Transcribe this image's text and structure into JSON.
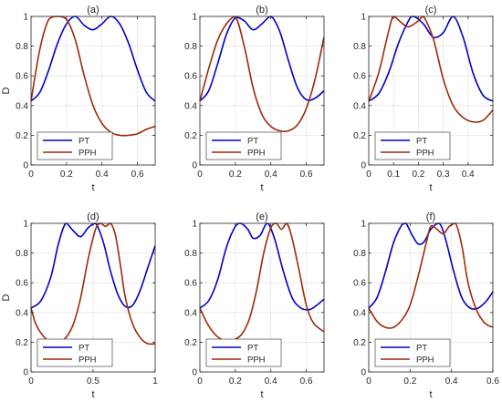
{
  "figure": {
    "legend_placement": "lower-left",
    "grid": true
  },
  "colors": {
    "PT": "#0000c8",
    "PPH": "#9e2a0a",
    "grid": "#e6e6e6",
    "axis": "#262626"
  },
  "chart_data": [
    {
      "type": "line",
      "panel": "(a)",
      "xlabel": "t",
      "ylabel": "D",
      "xlim": [
        0,
        0.7
      ],
      "ylim": [
        0,
        1
      ],
      "xticks": [
        0,
        0.2,
        0.4,
        0.6
      ],
      "xticklabels": [
        "0",
        "0.2",
        "0.4",
        "0.6"
      ],
      "yticks": [
        0,
        0.2,
        0.4,
        0.6,
        0.8,
        1
      ],
      "yticklabels": [
        "0",
        "0.2",
        "0.4",
        "0.6",
        "0.8",
        "1"
      ],
      "series": [
        {
          "name": "PT",
          "x": [
            0,
            0.05,
            0.1,
            0.15,
            0.2,
            0.25,
            0.3,
            0.35,
            0.4,
            0.45,
            0.5,
            0.55,
            0.6,
            0.65,
            0.7
          ],
          "y": [
            0.43,
            0.49,
            0.64,
            0.82,
            0.95,
            1.0,
            0.94,
            0.91,
            0.95,
            1.0,
            0.95,
            0.82,
            0.64,
            0.49,
            0.43
          ]
        },
        {
          "name": "PPH",
          "x": [
            0,
            0.05,
            0.1,
            0.15,
            0.2,
            0.25,
            0.3,
            0.35,
            0.4,
            0.45,
            0.5,
            0.55,
            0.6,
            0.65,
            0.7
          ],
          "y": [
            0.43,
            0.78,
            0.98,
            1.0,
            0.98,
            0.84,
            0.6,
            0.4,
            0.28,
            0.22,
            0.2,
            0.2,
            0.21,
            0.24,
            0.26
          ]
        }
      ]
    },
    {
      "type": "line",
      "panel": "(b)",
      "xlabel": "t",
      "ylabel": "",
      "xlim": [
        0,
        0.7
      ],
      "ylim": [
        0,
        1
      ],
      "xticks": [
        0,
        0.2,
        0.4,
        0.6
      ],
      "xticklabels": [
        "0",
        "0.2",
        "0.4",
        "0.6"
      ],
      "yticks": [
        0,
        0.2,
        0.4,
        0.6,
        0.8,
        1
      ],
      "yticklabels": [
        "0",
        "0.2",
        "0.4",
        "0.6",
        "0.8",
        "1"
      ],
      "series": [
        {
          "name": "PT",
          "x": [
            0,
            0.05,
            0.1,
            0.15,
            0.2,
            0.25,
            0.3,
            0.35,
            0.4,
            0.45,
            0.5,
            0.55,
            0.6,
            0.65,
            0.7
          ],
          "y": [
            0.43,
            0.5,
            0.68,
            0.88,
            0.99,
            0.97,
            0.91,
            0.95,
            1.0,
            0.9,
            0.7,
            0.52,
            0.44,
            0.45,
            0.5
          ]
        },
        {
          "name": "PPH",
          "x": [
            0,
            0.05,
            0.1,
            0.15,
            0.2,
            0.25,
            0.3,
            0.35,
            0.4,
            0.45,
            0.5,
            0.55,
            0.6,
            0.65,
            0.7
          ],
          "y": [
            0.43,
            0.65,
            0.84,
            0.95,
            1.0,
            0.8,
            0.52,
            0.34,
            0.26,
            0.23,
            0.23,
            0.27,
            0.38,
            0.58,
            0.86
          ]
        }
      ]
    },
    {
      "type": "line",
      "panel": "(c)",
      "xlabel": "t",
      "ylabel": "",
      "xlim": [
        0,
        0.5
      ],
      "ylim": [
        0,
        1
      ],
      "xticks": [
        0,
        0.1,
        0.2,
        0.3,
        0.4
      ],
      "xticklabels": [
        "0",
        "0.1",
        "0.2",
        "0.3",
        "0.4"
      ],
      "yticks": [
        0,
        0.2,
        0.4,
        0.6,
        0.8,
        1
      ],
      "yticklabels": [
        "0",
        "0.2",
        "0.4",
        "0.6",
        "0.8",
        "1"
      ],
      "series": [
        {
          "name": "PT",
          "x": [
            0,
            0.04,
            0.08,
            0.12,
            0.16,
            0.18,
            0.22,
            0.26,
            0.3,
            0.34,
            0.38,
            0.42,
            0.46,
            0.5
          ],
          "y": [
            0.43,
            0.48,
            0.62,
            0.82,
            0.97,
            1.0,
            0.95,
            0.86,
            0.89,
            1.0,
            0.86,
            0.62,
            0.47,
            0.43
          ]
        },
        {
          "name": "PPH",
          "x": [
            0,
            0.04,
            0.08,
            0.1,
            0.13,
            0.16,
            0.2,
            0.22,
            0.26,
            0.3,
            0.34,
            0.38,
            0.42,
            0.46,
            0.5
          ],
          "y": [
            0.43,
            0.62,
            0.9,
            1.0,
            0.96,
            0.93,
            0.97,
            1.0,
            0.85,
            0.58,
            0.4,
            0.32,
            0.29,
            0.3,
            0.37
          ]
        }
      ]
    },
    {
      "type": "line",
      "panel": "(d)",
      "xlabel": "t",
      "ylabel": "D",
      "xlim": [
        0,
        1
      ],
      "ylim": [
        0,
        1
      ],
      "xticks": [
        0,
        0.5,
        1
      ],
      "xticklabels": [
        "0",
        "0.5",
        "1"
      ],
      "yticks": [
        0,
        0.2,
        0.4,
        0.6,
        0.8,
        1
      ],
      "yticklabels": [
        "0",
        "0.2",
        "0.4",
        "0.6",
        "0.8",
        "1"
      ],
      "series": [
        {
          "name": "PT",
          "x": [
            0,
            0.08,
            0.16,
            0.22,
            0.28,
            0.34,
            0.4,
            0.46,
            0.52,
            0.58,
            0.64,
            0.7,
            0.76,
            0.82,
            0.88,
            0.94,
            1.0
          ],
          "y": [
            0.43,
            0.48,
            0.64,
            0.86,
            1.0,
            0.95,
            0.91,
            0.97,
            1.0,
            0.88,
            0.68,
            0.52,
            0.44,
            0.45,
            0.55,
            0.7,
            0.85
          ]
        },
        {
          "name": "PPH",
          "x": [
            0,
            0.04,
            0.1,
            0.16,
            0.22,
            0.28,
            0.34,
            0.4,
            0.46,
            0.52,
            0.56,
            0.6,
            0.64,
            0.68,
            0.72,
            0.76,
            0.82,
            0.88,
            0.94,
            1.0
          ],
          "y": [
            0.43,
            0.32,
            0.24,
            0.2,
            0.2,
            0.23,
            0.32,
            0.5,
            0.76,
            0.96,
            1.0,
            0.98,
            1.0,
            0.92,
            0.72,
            0.5,
            0.32,
            0.23,
            0.19,
            0.19
          ]
        }
      ]
    },
    {
      "type": "line",
      "panel": "(e)",
      "xlabel": "t",
      "ylabel": "",
      "xlim": [
        0,
        0.7
      ],
      "ylim": [
        0,
        1
      ],
      "xticks": [
        0,
        0.2,
        0.4,
        0.6
      ],
      "xticklabels": [
        "0",
        "0.2",
        "0.4",
        "0.6"
      ],
      "yticks": [
        0,
        0.2,
        0.4,
        0.6,
        0.8,
        1
      ],
      "yticklabels": [
        "0",
        "0.2",
        "0.4",
        "0.6",
        "0.8",
        "1"
      ],
      "series": [
        {
          "name": "PT",
          "x": [
            0,
            0.05,
            0.1,
            0.15,
            0.2,
            0.23,
            0.27,
            0.3,
            0.34,
            0.38,
            0.42,
            0.47,
            0.52,
            0.57,
            0.62,
            0.66,
            0.7
          ],
          "y": [
            0.43,
            0.48,
            0.62,
            0.84,
            0.98,
            1.0,
            0.96,
            0.9,
            0.92,
            1.0,
            0.9,
            0.68,
            0.5,
            0.43,
            0.42,
            0.45,
            0.49
          ]
        },
        {
          "name": "PPH",
          "x": [
            0,
            0.04,
            0.08,
            0.12,
            0.16,
            0.2,
            0.24,
            0.28,
            0.32,
            0.36,
            0.4,
            0.43,
            0.46,
            0.49,
            0.52,
            0.56,
            0.6,
            0.64,
            0.7
          ],
          "y": [
            0.43,
            0.33,
            0.26,
            0.22,
            0.21,
            0.22,
            0.26,
            0.36,
            0.55,
            0.8,
            0.97,
            1.0,
            0.96,
            1.0,
            0.9,
            0.68,
            0.45,
            0.33,
            0.27
          ]
        }
      ]
    },
    {
      "type": "line",
      "panel": "(f)",
      "xlabel": "t",
      "ylabel": "",
      "xlim": [
        0,
        0.6
      ],
      "ylim": [
        0,
        1
      ],
      "xticks": [
        0,
        0.2,
        0.4,
        0.6
      ],
      "xticklabels": [
        "0",
        "0.2",
        "0.4",
        "0.6"
      ],
      "yticks": [
        0,
        0.2,
        0.4,
        0.6,
        0.8,
        1
      ],
      "yticklabels": [
        "0",
        "0.2",
        "0.4",
        "0.6",
        "0.8",
        "1"
      ],
      "series": [
        {
          "name": "PT",
          "x": [
            0,
            0.04,
            0.08,
            0.12,
            0.16,
            0.18,
            0.21,
            0.24,
            0.27,
            0.3,
            0.34,
            0.37,
            0.41,
            0.45,
            0.49,
            0.53,
            0.57,
            0.6
          ],
          "y": [
            0.43,
            0.5,
            0.67,
            0.87,
            0.99,
            1.0,
            0.92,
            0.86,
            0.88,
            0.96,
            1.0,
            0.9,
            0.68,
            0.5,
            0.43,
            0.43,
            0.48,
            0.54
          ]
        },
        {
          "name": "PPH",
          "x": [
            0,
            0.04,
            0.08,
            0.12,
            0.16,
            0.2,
            0.24,
            0.28,
            0.3,
            0.33,
            0.36,
            0.39,
            0.42,
            0.45,
            0.48,
            0.52,
            0.56,
            0.6
          ],
          "y": [
            0.43,
            0.34,
            0.3,
            0.3,
            0.35,
            0.45,
            0.65,
            0.88,
            0.98,
            0.96,
            0.93,
            0.98,
            1.0,
            0.85,
            0.6,
            0.42,
            0.33,
            0.3
          ]
        }
      ]
    }
  ]
}
